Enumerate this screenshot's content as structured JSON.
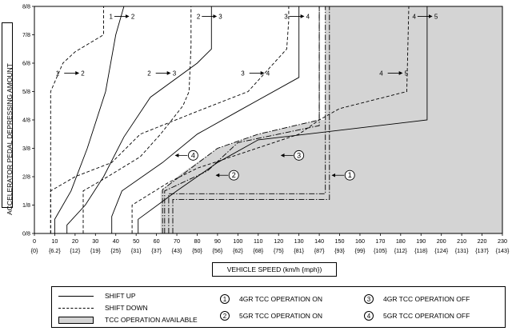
{
  "chart_data": {
    "type": "line",
    "ylabel": "ACCELERATOR PEDAL DEPRESSING AMOUNT",
    "xlabel": "VEHICLE SPEED (km/h {mph})",
    "xlim": [
      0,
      230
    ],
    "ylim": [
      0,
      8
    ],
    "x_ticks": [
      "0",
      "10",
      "20",
      "30",
      "40",
      "50",
      "60",
      "70",
      "80",
      "90",
      "100",
      "110",
      "120",
      "130",
      "140",
      "150",
      "160",
      "170",
      "180",
      "190",
      "200",
      "210",
      "220",
      "230"
    ],
    "x_ticks_mph": [
      "{0}",
      "{6.2}",
      "{12}",
      "{19}",
      "{25}",
      "{31}",
      "{37}",
      "{43}",
      "{50}",
      "{56}",
      "{62}",
      "{68}",
      "{75}",
      "{81}",
      "{87}",
      "{93}",
      "{99}",
      "{105}",
      "{112}",
      "{118}",
      "{124}",
      "{131}",
      "{137}",
      "{143}"
    ],
    "y_ticks": [
      "0/8",
      "1/8",
      "2/8",
      "3/8",
      "4/8",
      "5/8",
      "6/8",
      "7/8",
      "8/8"
    ],
    "shaded_region": {
      "name": "TCC OPERATION AVAILABLE",
      "points": [
        [
          62,
          0
        ],
        [
          62,
          1.5
        ],
        [
          72,
          2.1
        ],
        [
          90,
          3
        ],
        [
          110,
          3.5
        ],
        [
          140,
          4
        ],
        [
          143,
          4
        ],
        [
          143,
          8
        ],
        [
          230,
          8
        ],
        [
          230,
          0
        ]
      ]
    },
    "series": [
      {
        "name": "1-2 up",
        "style": "solid",
        "points": [
          [
            10,
            0
          ],
          [
            10,
            0.5
          ],
          [
            18,
            1.5
          ],
          [
            26,
            3
          ],
          [
            35,
            5
          ],
          [
            40,
            7
          ],
          [
            44,
            8
          ]
        ]
      },
      {
        "name": "1-2 down",
        "style": "dashed",
        "points": [
          [
            8,
            0
          ],
          [
            8,
            5
          ],
          [
            14,
            6
          ],
          [
            20,
            6.4
          ],
          [
            34,
            7
          ],
          [
            34,
            8
          ]
        ]
      },
      {
        "name": "2-3 up",
        "style": "solid",
        "points": [
          [
            16,
            0
          ],
          [
            16,
            0.3
          ],
          [
            25,
            1
          ],
          [
            34,
            2
          ],
          [
            44,
            3.4
          ],
          [
            57,
            4.8
          ],
          [
            80,
            6
          ],
          [
            87,
            6.5
          ],
          [
            87,
            8
          ]
        ]
      },
      {
        "name": "2-3 down",
        "style": "dashed",
        "points": [
          [
            24,
            0
          ],
          [
            24,
            1.5
          ],
          [
            36,
            2
          ],
          [
            52,
            2.7
          ],
          [
            62,
            3.5
          ],
          [
            73,
            4.5
          ],
          [
            76,
            5
          ],
          [
            77,
            6.6
          ],
          [
            77,
            7
          ],
          [
            77,
            8
          ]
        ]
      },
      {
        "name": "3-4 up",
        "style": "solid",
        "points": [
          [
            38,
            0
          ],
          [
            38,
            0.6
          ],
          [
            43,
            1.5
          ],
          [
            63,
            2.5
          ],
          [
            80,
            3.5
          ],
          [
            100,
            4.3
          ],
          [
            130,
            5.5
          ],
          [
            130,
            8
          ]
        ]
      },
      {
        "name": "3-4 down",
        "style": "dashed",
        "points": [
          [
            8,
            0
          ],
          [
            8,
            1.5
          ],
          [
            20,
            2
          ],
          [
            38,
            2.5
          ],
          [
            52,
            3.5
          ],
          [
            80,
            4.3
          ],
          [
            105,
            5
          ],
          [
            124,
            6.5
          ],
          [
            125,
            7.5
          ],
          [
            125,
            8
          ]
        ]
      },
      {
        "name": "4-5 up",
        "style": "solid",
        "points": [
          [
            51,
            0
          ],
          [
            51,
            0.5
          ],
          [
            70,
            1.5
          ],
          [
            90,
            2.5
          ],
          [
            110,
            3.3
          ],
          [
            193,
            4
          ],
          [
            193,
            8
          ]
        ]
      },
      {
        "name": "4-5 down",
        "style": "dashed",
        "points": [
          [
            48,
            0
          ],
          [
            48,
            1
          ],
          [
            66,
            1.8
          ],
          [
            80,
            2.3
          ],
          [
            130,
            3.5
          ],
          [
            140,
            4
          ],
          [
            150,
            4.4
          ],
          [
            183,
            5
          ],
          [
            184,
            8
          ]
        ]
      }
    ],
    "tcc_lines": [
      {
        "num": "1",
        "label": "4GR TCC OPERATION ON",
        "points": [
          [
            68,
            0
          ],
          [
            68,
            1.2
          ],
          [
            145,
            1.2
          ],
          [
            145,
            8
          ]
        ]
      },
      {
        "num": "2",
        "label": "5GR TCC OPERATION ON",
        "points": [
          [
            64,
            0
          ],
          [
            64,
            1.5
          ],
          [
            85,
            2.2
          ],
          [
            100,
            3.2
          ],
          [
            140,
            3.8
          ],
          [
            140,
            8
          ]
        ]
      },
      {
        "num": "3",
        "label": "4GR TCC OPERATION OFF",
        "points": [
          [
            66,
            0
          ],
          [
            66,
            1.4
          ],
          [
            143,
            1.4
          ],
          [
            143,
            8
          ]
        ]
      },
      {
        "num": "4",
        "label": "5GR TCC OPERATION OFF",
        "points": [
          [
            63,
            0
          ],
          [
            63,
            1.55
          ],
          [
            90,
            3.0
          ],
          [
            110,
            3.5
          ],
          [
            140,
            4.0
          ],
          [
            140,
            8
          ]
        ]
      }
    ],
    "annotations": [
      {
        "text": "1",
        "to": "2",
        "x": 44,
        "y": 7.65,
        "dir": "right"
      },
      {
        "text": "1",
        "to": "2",
        "x": 17,
        "y": 5.65,
        "dir": "left"
      },
      {
        "text": "2",
        "to": "3",
        "x": 87,
        "y": 7.65,
        "dir": "right"
      },
      {
        "text": "2",
        "to": "3",
        "x": 62,
        "y": 5.65,
        "dir": "left"
      },
      {
        "text": "3",
        "to": "4",
        "x": 130,
        "y": 7.65,
        "dir": "right"
      },
      {
        "text": "3",
        "to": "4",
        "x": 108,
        "y": 5.65,
        "dir": "left"
      },
      {
        "text": "4",
        "to": "5",
        "x": 193,
        "y": 7.65,
        "dir": "right"
      },
      {
        "text": "4",
        "to": "5",
        "x": 176,
        "y": 5.65,
        "dir": "left"
      }
    ],
    "circled_markers": [
      {
        "num": "1",
        "x": 155,
        "y": 2.05
      },
      {
        "num": "2",
        "x": 98,
        "y": 2.05
      },
      {
        "num": "3",
        "x": 130,
        "y": 2.75
      },
      {
        "num": "4",
        "x": 78,
        "y": 2.75
      }
    ],
    "legend": [
      {
        "key": "solid",
        "label": "SHIFT UP"
      },
      {
        "key": "dashed",
        "label": "SHIFT DOWN"
      },
      {
        "key": "shade",
        "label": "TCC OPERATION AVAILABLE"
      },
      {
        "key": "1",
        "label": "4GR TCC OPERATION ON"
      },
      {
        "key": "2",
        "label": "5GR TCC OPERATION ON"
      },
      {
        "key": "3",
        "label": "4GR TCC OPERATION OFF"
      },
      {
        "key": "4",
        "label": "5GR TCC OPERATION OFF"
      }
    ]
  }
}
